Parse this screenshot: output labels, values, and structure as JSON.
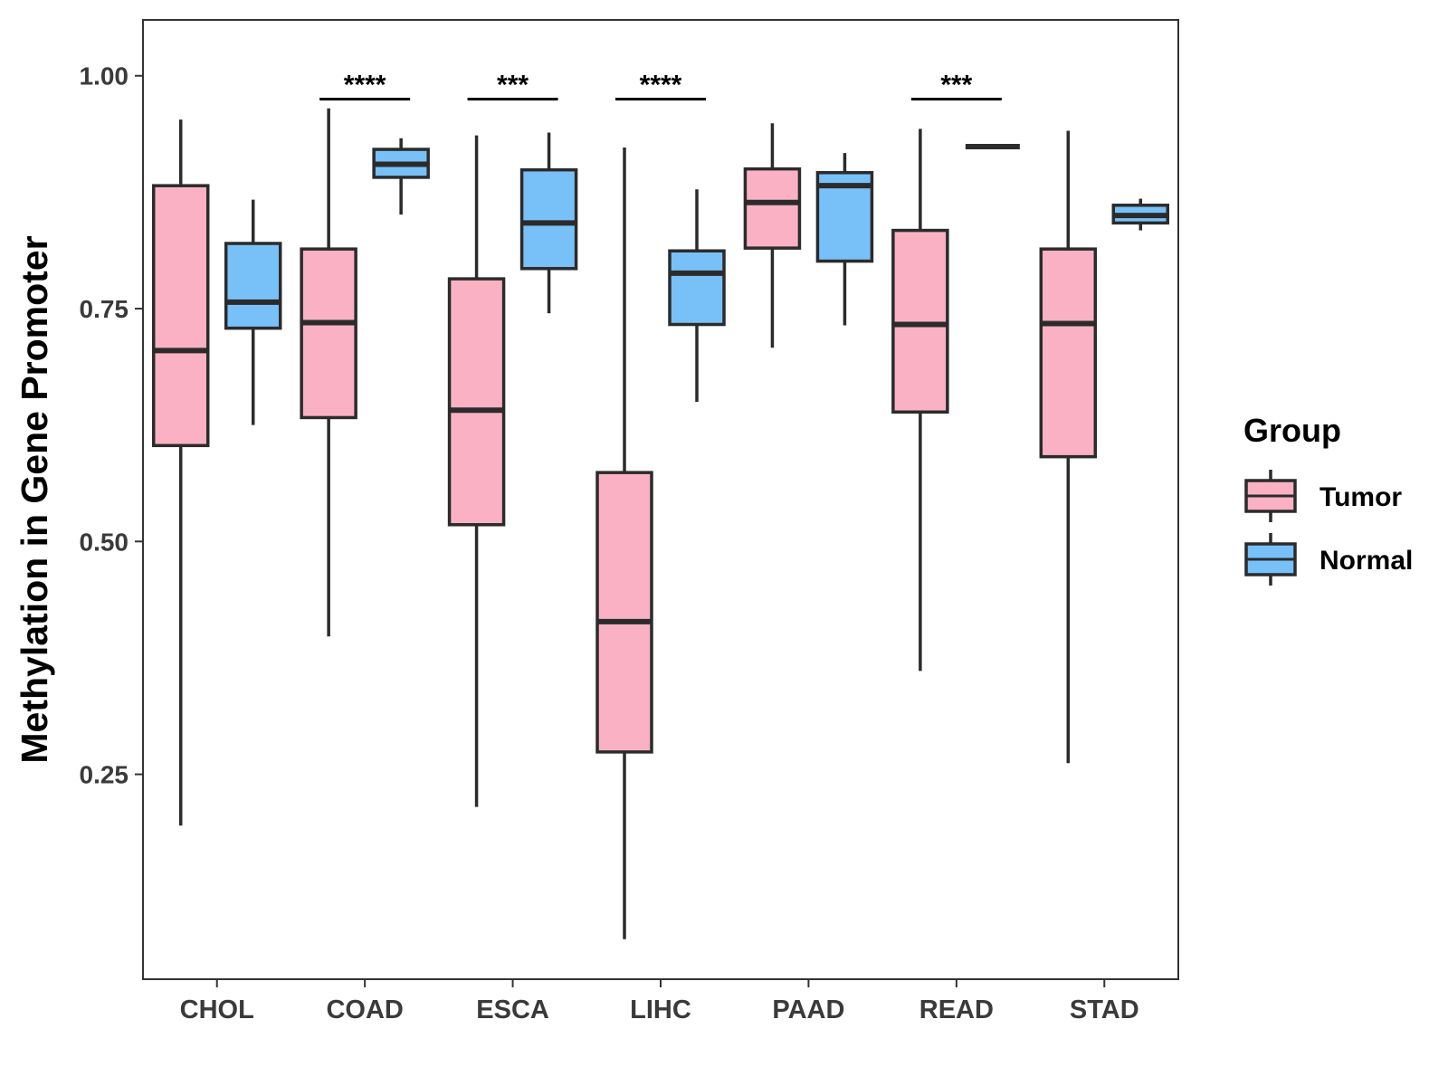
{
  "chart_data": {
    "type": "boxplot",
    "title": "",
    "xlabel": "",
    "ylabel": "Methylation in Gene Promoter",
    "ylim": [
      0.03,
      1.06
    ],
    "yticks": [
      0.25,
      0.5,
      0.75,
      1.0
    ],
    "ytick_labels": [
      "0.25",
      "0.50",
      "0.75",
      "1.00"
    ],
    "grid": false,
    "categories": [
      "CHOL",
      "COAD",
      "ESCA",
      "LIHC",
      "PAAD",
      "READ",
      "STAD"
    ],
    "legend": {
      "title": "Group",
      "placement": "right",
      "items": [
        {
          "name": "Tumor",
          "color": "#fbb1c4"
        },
        {
          "name": "Normal",
          "color": "#78c1f8"
        }
      ]
    },
    "series": [
      {
        "name": "Tumor",
        "color": "#fbb1c4",
        "boxes": [
          {
            "category": "CHOL",
            "min": 0.195,
            "q1": 0.603,
            "median": 0.705,
            "q3": 0.882,
            "max": 0.953
          },
          {
            "category": "COAD",
            "min": 0.398,
            "q1": 0.633,
            "median": 0.735,
            "q3": 0.814,
            "max": 0.965
          },
          {
            "category": "ESCA",
            "min": 0.215,
            "q1": 0.518,
            "median": 0.641,
            "q3": 0.782,
            "max": 0.936
          },
          {
            "category": "LIHC",
            "min": 0.073,
            "q1": 0.274,
            "median": 0.414,
            "q3": 0.574,
            "max": 0.923
          },
          {
            "category": "PAAD",
            "min": 0.708,
            "q1": 0.815,
            "median": 0.864,
            "q3": 0.9,
            "max": 0.949
          },
          {
            "category": "READ",
            "min": 0.361,
            "q1": 0.639,
            "median": 0.733,
            "q3": 0.834,
            "max": 0.943
          },
          {
            "category": "STAD",
            "min": 0.262,
            "q1": 0.591,
            "median": 0.734,
            "q3": 0.814,
            "max": 0.941
          }
        ]
      },
      {
        "name": "Normal",
        "color": "#78c1f8",
        "boxes": [
          {
            "category": "CHOL",
            "min": 0.625,
            "q1": 0.729,
            "median": 0.757,
            "q3": 0.82,
            "max": 0.867
          },
          {
            "category": "COAD",
            "min": 0.851,
            "q1": 0.891,
            "median": 0.905,
            "q3": 0.921,
            "max": 0.933
          },
          {
            "category": "ESCA",
            "min": 0.745,
            "q1": 0.793,
            "median": 0.842,
            "q3": 0.899,
            "max": 0.939
          },
          {
            "category": "LIHC",
            "min": 0.65,
            "q1": 0.733,
            "median": 0.788,
            "q3": 0.812,
            "max": 0.878
          },
          {
            "category": "PAAD",
            "min": 0.732,
            "q1": 0.801,
            "median": 0.882,
            "q3": 0.896,
            "max": 0.917
          },
          {
            "category": "READ",
            "min": 0.924,
            "q1": 0.924,
            "median": 0.924,
            "q3": 0.924,
            "max": 0.924
          },
          {
            "category": "STAD",
            "min": 0.834,
            "q1": 0.842,
            "median": 0.85,
            "q3": 0.861,
            "max": 0.868
          }
        ]
      }
    ],
    "annotations": [
      {
        "category": "COAD",
        "label": "****"
      },
      {
        "category": "ESCA",
        "label": "***"
      },
      {
        "category": "LIHC",
        "label": "****"
      },
      {
        "category": "READ",
        "label": "***"
      }
    ]
  }
}
